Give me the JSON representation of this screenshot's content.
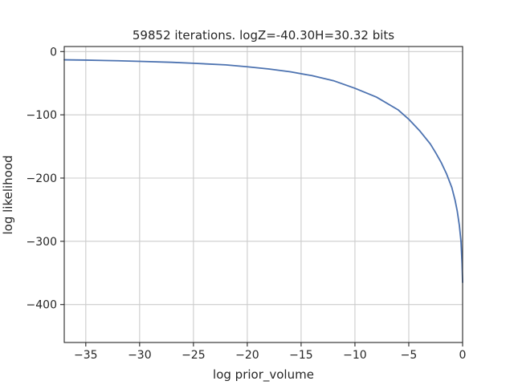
{
  "chart_data": {
    "type": "line",
    "title": "59852 iterations. logZ=-40.30H=30.32 bits",
    "xlabel": "log prior_volume",
    "ylabel": "log likelihood",
    "xlim": [
      -37.0,
      0.0
    ],
    "ylim": [
      -460,
      8
    ],
    "xticks": [
      -35,
      -30,
      -25,
      -20,
      -15,
      -10,
      -5,
      0
    ],
    "xtick_labels": [
      "−35",
      "−30",
      "−25",
      "−20",
      "−15",
      "−10",
      "−5",
      "0"
    ],
    "yticks": [
      0,
      -100,
      -200,
      -300,
      -400
    ],
    "ytick_labels": [
      "0",
      "−100",
      "−200",
      "−300",
      "−400"
    ],
    "grid": true,
    "series": [
      {
        "color": "#4c72b0",
        "x": [
          -37.0,
          -35.0,
          -32.0,
          -30.0,
          -27.0,
          -25.0,
          -22.0,
          -20.0,
          -18.0,
          -16.0,
          -14.0,
          -12.0,
          -10.0,
          -8.0,
          -6.0,
          -5.0,
          -4.0,
          -3.0,
          -2.5,
          -2.0,
          -1.5,
          -1.0,
          -0.7,
          -0.5,
          -0.3,
          -0.15,
          -0.05,
          0.0
        ],
        "y": [
          -13,
          -13.5,
          -14.5,
          -15.5,
          -17,
          -18.5,
          -21,
          -24,
          -27.5,
          -32,
          -38,
          -46,
          -58,
          -72,
          -92,
          -107,
          -125,
          -146,
          -160,
          -175,
          -193,
          -215,
          -235,
          -252,
          -275,
          -300,
          -335,
          -365
        ]
      }
    ]
  }
}
